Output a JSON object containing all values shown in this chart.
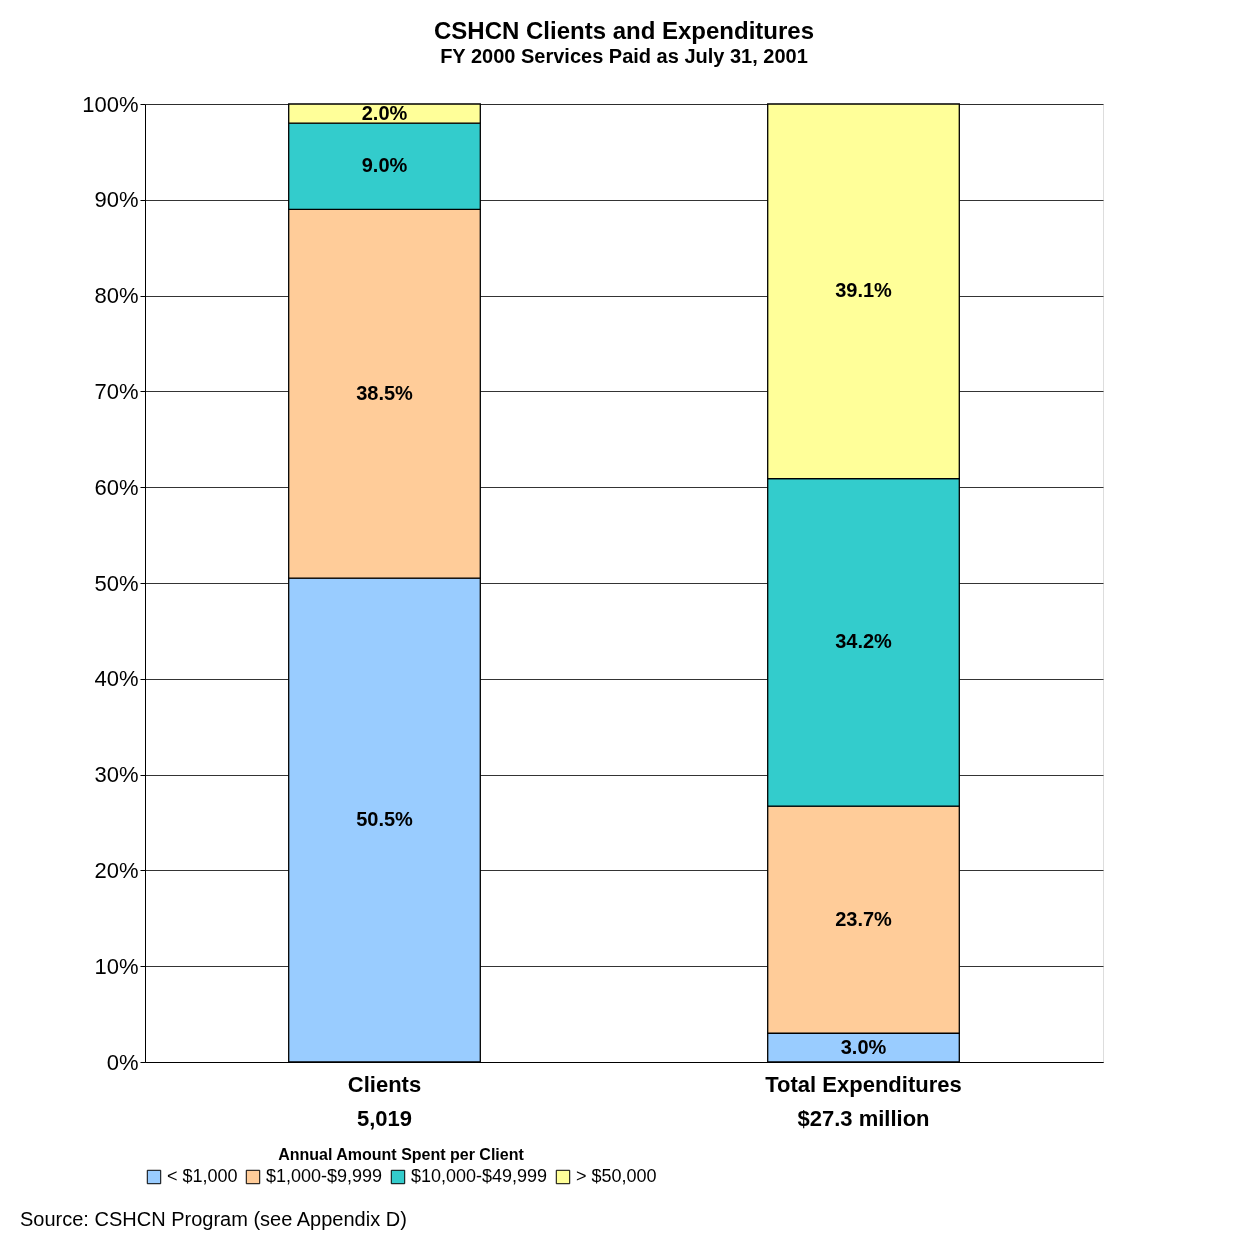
{
  "chart_data": {
    "type": "bar",
    "title": "CSHCN Clients and Expenditures",
    "subtitle": "FY 2000 Services Paid as July 31, 2001",
    "categories": [
      "Clients\n5,019",
      "Total Expenditures\n$27.3 million"
    ],
    "stacked": true,
    "series": [
      {
        "name": "< $1,000",
        "color": "#99ccff",
        "values": [
          50.5,
          3.0
        ],
        "value_labels": [
          "50.5%",
          "3.0%"
        ]
      },
      {
        "name": "$1,000-$9,999",
        "color": "#ffcc99",
        "values": [
          38.5,
          23.7
        ],
        "value_labels": [
          "38.5%",
          "23.7%"
        ]
      },
      {
        "name": "$10,000-$49,999",
        "color": "#33cccc",
        "values": [
          9.0,
          34.2
        ],
        "value_labels": [
          "9.0%",
          "34.2%"
        ]
      },
      {
        "name": "> $50,000",
        "color": "#ffff99",
        "values": [
          2.0,
          39.1
        ],
        "value_labels": [
          "2.0%",
          "39.1%"
        ]
      }
    ],
    "ylim": [
      0,
      100
    ],
    "yticks": [
      {
        "value": 0,
        "label": "0%"
      },
      {
        "value": 10,
        "label": "10%"
      },
      {
        "value": 20,
        "label": "20%"
      },
      {
        "value": 30,
        "label": "30%"
      },
      {
        "value": 40,
        "label": "40%"
      },
      {
        "value": 50,
        "label": "50%"
      },
      {
        "value": 60,
        "label": "60%"
      },
      {
        "value": 70,
        "label": "70%"
      },
      {
        "value": 80,
        "label": "80%"
      },
      {
        "value": 90,
        "label": "90%"
      },
      {
        "value": 100,
        "label": "100%"
      }
    ],
    "grid": "y",
    "legend": "bottom",
    "legend_title": "Annual Amount Spent per Client",
    "annotations": [
      "Source:  CSHCN Program (see Appendix D)"
    ]
  }
}
